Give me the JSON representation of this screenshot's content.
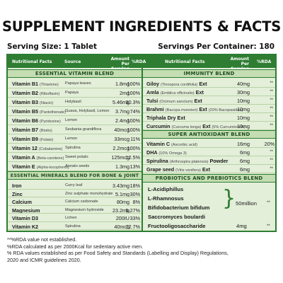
{
  "title": "SUPPLEMENT INGREDIENTS & FACTS",
  "serving_size": "Serving Size: 1 Tablet",
  "servings_per_container": "Servings Per Container: 180",
  "header": {
    "nutritional_facts": "Nutritional Facts",
    "source": "Source",
    "amount_per_serving": "Amount Per Serving",
    "rda": "%RDA",
    "nutritional_facts_right": "Nutritional Facts",
    "amount_per_serving_right": "Amount Per Serving",
    "rda_right": "%RDA"
  },
  "vitamins": {
    "heading": "ESSENTIAL VITAMIN BLEND",
    "rows": [
      {
        "name": "Vitamin B1",
        "sub": "(Thiamine)",
        "source": "Papaya leaves",
        "amount": "1.8mg",
        "rda": "100%"
      },
      {
        "name": "Vitamin B2",
        "sub": "(Riboflavin)",
        "source": "Papaya",
        "amount": "2mg",
        "rda": "100%"
      },
      {
        "name": "Vitamin B3",
        "sub": "(Niacin)",
        "source": "Holybasil",
        "amount": "5.46mg",
        "rda": "30.3%"
      },
      {
        "name": "Vitamin B5",
        "sub": "(Pantothenate)",
        "source": "Guava, Holybasil, Lemon",
        "amount": "3.7mg",
        "rda": "74%"
      },
      {
        "name": "Vitamin B6",
        "sub": "(Pyridoxine)",
        "source": "Lemon",
        "amount": "2.4mg",
        "rda": "100%"
      },
      {
        "name": "Vitamin B7",
        "sub": "(Biotin)",
        "source": "Sesbania grandiflora",
        "amount": "40mcg",
        "rda": "100%"
      },
      {
        "name": "Vitamin B9",
        "sub": "(Folate)",
        "source": "Lemon",
        "amount": "33mcg",
        "rda": "11%"
      },
      {
        "name": "Vitamin 12",
        "sub": "(Cobalamine)",
        "source": "Spirulina",
        "amount": "2.2mcg",
        "rda": "100%"
      },
      {
        "name": "Vitamin A",
        "sub": "(Beta-carotene)",
        "source": "Sweet potato",
        "amount": "125mcg",
        "rda": "12.5%"
      },
      {
        "name": "Vitamin E",
        "sub": "(Alpha-tocopherol)",
        "source": "Annato seeds",
        "amount": "1.3mg",
        "rda": "13%"
      }
    ]
  },
  "minerals": {
    "heading": "ESSENTIAL MINERALS BLEND FOR BONE & JOINT",
    "rows": [
      {
        "name": "Iron",
        "source": "Curry leaf",
        "amount": "3.43mg",
        "rda": "18%"
      },
      {
        "name": "Zinc",
        "source": "Zinc sulphate monohydrate",
        "amount": "5.1mg",
        "rda": "30%"
      },
      {
        "name": "Calcium",
        "source": "Calcium carbonate",
        "amount": "80mg",
        "rda": "8%"
      },
      {
        "name": "Magnesium",
        "source": "Magnesium hydroxide",
        "amount": "23.2mg",
        "rda": "5.27%"
      },
      {
        "name": "Vitamin D3",
        "source": "Lichen",
        "amount": "200IU",
        "rda": "33%"
      },
      {
        "name": "Vitamin K2",
        "source": "Spirulina",
        "amount": "40mcg",
        "rda": "72.7%"
      }
    ]
  },
  "immunity": {
    "heading": "IMMUNITY BLEND",
    "rows": [
      {
        "name": "Giloy",
        "sub": "(Tinospora cordifolia)",
        "suffix": "Ext",
        "amount": "40mg",
        "rda": "**"
      },
      {
        "name": "Amla",
        "sub": "(Emblica officinalis)",
        "suffix": "Ext",
        "amount": "30mg",
        "rda": "**"
      },
      {
        "name": "Tulsi",
        "sub": "(Ocimum sanctum)",
        "suffix": "Ext",
        "amount": "10mg",
        "rda": "**"
      },
      {
        "name": "Brahmi",
        "sub": "(Bacopa monnieri)",
        "suffix": "Ext",
        "sub2": "(20% Bacopasides)",
        "amount": "10mg",
        "rda": "**"
      },
      {
        "name": "Triphala",
        "sub": "",
        "suffix": "Dry Ext",
        "amount": "10mg",
        "rda": "**"
      },
      {
        "name": "Curcumin",
        "sub": "(Curcuma longa)",
        "suffix": "Ext",
        "sub2": "(5% Curcuminoids)",
        "amount": "10mg",
        "rda": "**"
      }
    ]
  },
  "antioxidant": {
    "heading": "SUPER ANTIOXIDANT BLEND",
    "rows": [
      {
        "name": "Vitamin C",
        "sub": "(Ascorbic acid)",
        "suffix": "",
        "amount": "16mg",
        "rda": "20%"
      },
      {
        "name": "DHA",
        "sub": "(10% Omega 3)",
        "suffix": "",
        "amount": "6mg",
        "rda": "**"
      },
      {
        "name": "Spirulina",
        "sub": "(Arthrospira platensis)",
        "suffix": "Powder",
        "amount": "6mg",
        "rda": "**"
      },
      {
        "name": "Grape seed",
        "sub": "(Vitis venifera)",
        "suffix": "Ext",
        "amount": "6mg",
        "rda": "**"
      }
    ]
  },
  "probiotics": {
    "heading": "PROBIOTICS AND PREBIOTICS BLEND",
    "items": [
      "L-Acidiphillus",
      "L-Rhamnosus",
      "Bifidobacterium bifidum",
      "Saccromyces boulardi"
    ],
    "group_amount": "50million",
    "group_rda": "**",
    "prebiotic": {
      "name": "Fructooligosaccharide",
      "amount": "4mg",
      "rda": "**"
    }
  },
  "notes": [
    "**%RDA value not established.",
    "%RDA calculated as per 2000Kcal for sedentary active men.",
    "% RDA values established as per Food Safety and Standards (Labelling and Display) Regulations,",
    "2020 and ICMR guidelines 2020."
  ],
  "colors": {
    "primary_green": "#2e7d32",
    "panel_bg": "#e3efd9",
    "band_bg": "#c4ddb2"
  }
}
